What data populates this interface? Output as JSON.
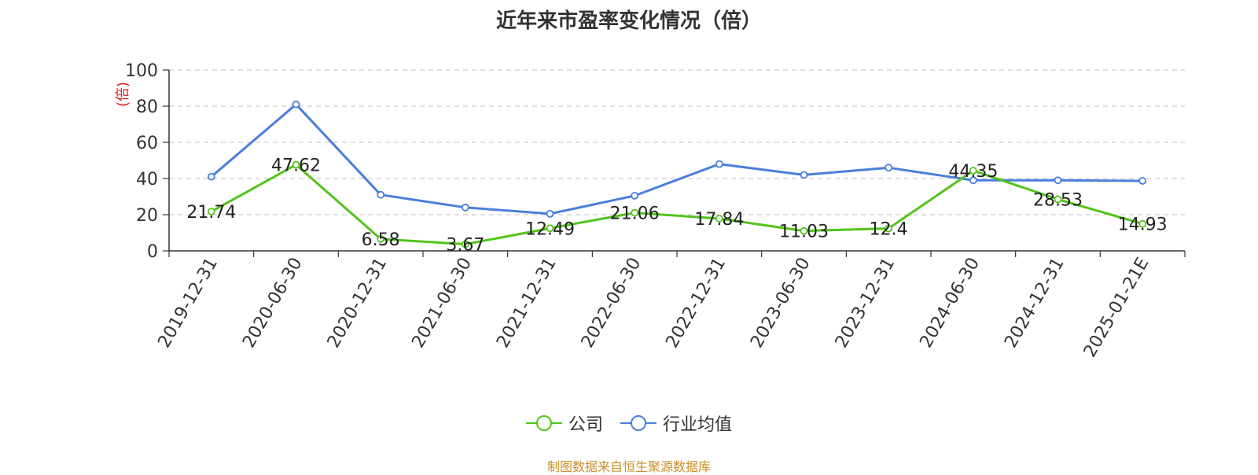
{
  "page": {
    "title": "近年来市盈率变化情况（倍）",
    "source": "制图数据来自恒生聚源数据库"
  },
  "chart_data": {
    "type": "line",
    "title": "近年来市盈率变化情况（倍）",
    "ylabel": "(倍)",
    "xlabel": "",
    "ylim": [
      0,
      100
    ],
    "yticks": [
      0,
      20,
      40,
      60,
      80,
      100
    ],
    "grid": true,
    "legend_position": "bottom",
    "categories": [
      "2019-12-31",
      "2020-06-30",
      "2020-12-31",
      "2021-06-30",
      "2021-12-31",
      "2022-06-30",
      "2022-12-31",
      "2023-06-30",
      "2023-12-31",
      "2024-06-30",
      "2024-12-31",
      "2025-01-21E"
    ],
    "series": [
      {
        "name": "公司",
        "color": "#52c41a",
        "values": [
          21.74,
          47.62,
          6.58,
          3.67,
          12.49,
          21.06,
          17.84,
          11.03,
          12.4,
          44.35,
          28.53,
          14.93
        ],
        "labels": [
          "21.74",
          "47.62",
          "6.58",
          "3.67",
          "12.49",
          "21.06",
          "17.84",
          "11.03",
          "12.4",
          "44.35",
          "28.53",
          "14.93"
        ]
      },
      {
        "name": "行业均值",
        "color": "#4a7fdc",
        "values": [
          41,
          81,
          31,
          24,
          20.5,
          30.5,
          48,
          42,
          46,
          39,
          39,
          38.7
        ]
      }
    ]
  }
}
